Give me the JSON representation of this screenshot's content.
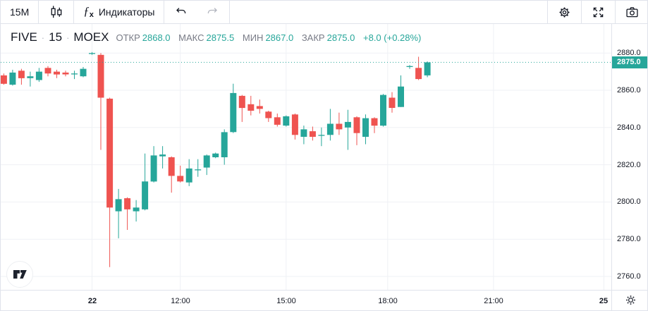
{
  "toolbar": {
    "interval_label": "15M",
    "fx_glyph": "ƒ",
    "fx_sub": "x",
    "indicators_label": "Индикаторы"
  },
  "legend": {
    "symbol": "FIVE",
    "interval": "15",
    "exchange": "MOEX",
    "separator": "·",
    "fields": [
      {
        "label": "ОТКР",
        "value": "2868.0"
      },
      {
        "label": "МАКС",
        "value": "2875.5"
      },
      {
        "label": "МИН",
        "value": "2867.0"
      },
      {
        "label": "ЗАКР",
        "value": "2875.0"
      }
    ],
    "change": "+8.0 (+0.28%)"
  },
  "chart_data": {
    "type": "candlestick",
    "title": "FIVE 15 MOEX",
    "interval_minutes": 15,
    "grid": true,
    "last_price": 2875.0,
    "last_price_label": "2875.0",
    "y_axis": {
      "price_range": [
        2752.8,
        2895.6
      ],
      "ticks": [
        {
          "value": 2880,
          "label": "2880.0"
        },
        {
          "value": 2860,
          "label": "2860.0"
        },
        {
          "value": 2840,
          "label": "2840.0"
        },
        {
          "value": 2820,
          "label": "2820.0"
        },
        {
          "value": 2800,
          "label": "2800.0"
        },
        {
          "value": 2780,
          "label": "2780.0"
        },
        {
          "value": 2760,
          "label": "2760.0"
        }
      ]
    },
    "x_axis": {
      "index_range": [
        -0.35,
        68.85
      ],
      "ticks": [
        {
          "label": "22",
          "index": 10,
          "bold": true
        },
        {
          "label": "12:00",
          "index": 20,
          "bold": false
        },
        {
          "label": "15:00",
          "index": 32,
          "bold": false
        },
        {
          "label": "18:00",
          "index": 43.5,
          "bold": false
        },
        {
          "label": "21:00",
          "index": 55.5,
          "bold": false
        },
        {
          "label": "25",
          "index": 68,
          "bold": true
        }
      ]
    },
    "candles_ohlc": [
      [
        2868.0,
        2869.0,
        2863.0,
        2863.5
      ],
      [
        2863.0,
        2871.0,
        2862.5,
        2869.5
      ],
      [
        2870.5,
        2871.5,
        2863.0,
        2866.5
      ],
      [
        2866.5,
        2870.0,
        2862.0,
        2867.5
      ],
      [
        2865.5,
        2872.0,
        2864.5,
        2870.0
      ],
      [
        2872.0,
        2873.0,
        2867.5,
        2869.0
      ],
      [
        2870.0,
        2871.0,
        2866.5,
        2868.5
      ],
      [
        2869.5,
        2870.5,
        2867.5,
        2868.5
      ],
      [
        2868.5,
        2870.5,
        2866.0,
        2869.0
      ],
      [
        2867.5,
        2872.5,
        2867.0,
        2871.5
      ],
      [
        2879.5,
        2880.5,
        2879.0,
        2880.0
      ],
      [
        2879.0,
        2880.0,
        2828.0,
        2856.0
      ],
      [
        2855.5,
        2856.0,
        2765.0,
        2797.0
      ],
      [
        2795.0,
        2807.0,
        2780.5,
        2801.5
      ],
      [
        2802.0,
        2802.5,
        2785.0,
        2796.0
      ],
      [
        2795.0,
        2801.0,
        2789.5,
        2797.0
      ],
      [
        2796.0,
        2826.0,
        2795.5,
        2811.0
      ],
      [
        2811.0,
        2830.0,
        2810.5,
        2825.0
      ],
      [
        2824.5,
        2830.0,
        2818.0,
        2825.5
      ],
      [
        2824.0,
        2824.5,
        2805.0,
        2814.0
      ],
      [
        2814.0,
        2819.5,
        2810.5,
        2811.0
      ],
      [
        2810.5,
        2823.0,
        2808.5,
        2818.0
      ],
      [
        2817.0,
        2823.0,
        2813.5,
        2817.5
      ],
      [
        2818.5,
        2825.5,
        2814.5,
        2825.0
      ],
      [
        2824.0,
        2826.5,
        2823.5,
        2826.0
      ],
      [
        2824.0,
        2839.0,
        2820.0,
        2837.5
      ],
      [
        2837.5,
        2863.5,
        2837.0,
        2858.5
      ],
      [
        2857.0,
        2857.5,
        2843.0,
        2850.5
      ],
      [
        2852.5,
        2857.0,
        2846.5,
        2849.0
      ],
      [
        2851.5,
        2855.0,
        2847.5,
        2850.0
      ],
      [
        2848.5,
        2849.0,
        2843.0,
        2845.0
      ],
      [
        2845.5,
        2847.5,
        2840.5,
        2841.5
      ],
      [
        2841.0,
        2846.5,
        2840.5,
        2846.0
      ],
      [
        2847.0,
        2847.5,
        2833.5,
        2836.0
      ],
      [
        2835.0,
        2841.0,
        2831.0,
        2839.0
      ],
      [
        2838.0,
        2840.5,
        2833.0,
        2835.0
      ],
      [
        2835.5,
        2840.0,
        2830.0,
        2836.0
      ],
      [
        2836.0,
        2850.0,
        2833.0,
        2842.0
      ],
      [
        2842.0,
        2848.0,
        2836.0,
        2839.0
      ],
      [
        2840.0,
        2849.5,
        2828.0,
        2843.0
      ],
      [
        2845.5,
        2846.0,
        2830.5,
        2837.0
      ],
      [
        2835.0,
        2847.0,
        2831.0,
        2845.0
      ],
      [
        2845.0,
        2845.5,
        2837.0,
        2841.0
      ],
      [
        2841.0,
        2858.0,
        2840.5,
        2857.5
      ],
      [
        2856.0,
        2859.0,
        2848.0,
        2850.5
      ],
      [
        2851.0,
        2868.0,
        2851.0,
        2862.0
      ],
      [
        2872.5,
        2873.5,
        2871.5,
        2873.0
      ],
      [
        2872.0,
        2878.0,
        2865.5,
        2866.0
      ],
      [
        2868.0,
        2875.5,
        2867.0,
        2875.0
      ]
    ]
  },
  "colors": {
    "up": "#26a69a",
    "down": "#ef5350",
    "grid": "#eff1f5",
    "axis_text": "#131722",
    "muted_text": "#787b86",
    "disabled_icon": "#b2b5be",
    "badge_bg": "#26a69a",
    "badge_text": "#ffffff",
    "dotted_line": "#26a69a"
  }
}
